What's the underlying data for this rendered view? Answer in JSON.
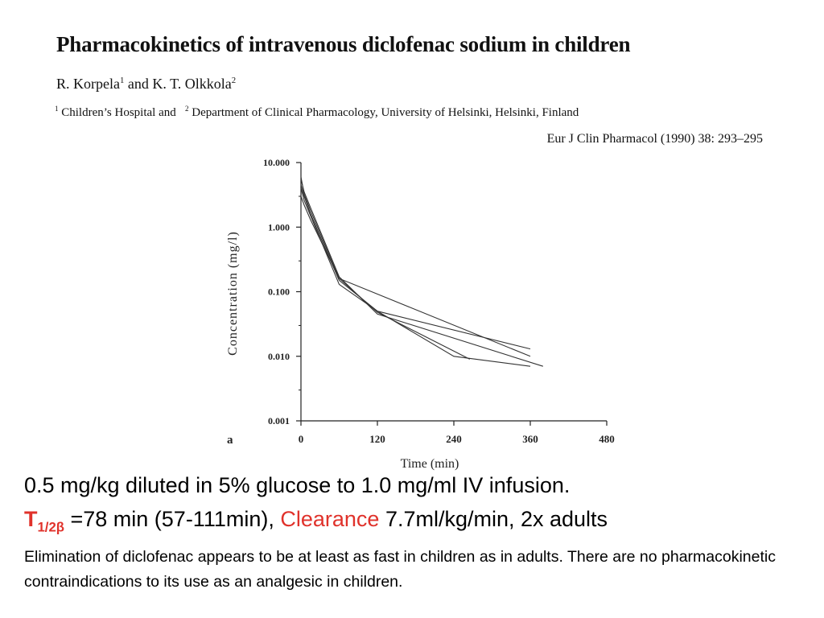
{
  "paper": {
    "title": "Pharmacokinetics of intravenous diclofenac sodium in children",
    "author1": "R. Korpela",
    "author1_sup": "1",
    "author_and": " and ",
    "author2": "K. T. Olkkola",
    "author2_sup": "2",
    "affil1_num": "1",
    "affil1": "Children’s Hospital and",
    "affil2_num": "2",
    "affil2": "Department of Clinical Pharmacology, University of Helsinki, Helsinki, Finland",
    "journal": "Eur J Clin Pharmacol (1990) 38: 293–295"
  },
  "chart_data": {
    "type": "line",
    "panel_label": "a",
    "xlabel": "Time (min)",
    "ylabel": "Concentration (mg/l)",
    "y_scale": "log",
    "xlim": [
      0,
      480
    ],
    "ylim": [
      0.001,
      10
    ],
    "x_ticks": [
      0,
      120,
      240,
      360,
      480
    ],
    "x_tick_labels": [
      "0",
      "120",
      "240",
      "360",
      "480"
    ],
    "y_ticks": [
      0.001,
      0.01,
      0.1,
      1,
      10
    ],
    "y_tick_labels": [
      "0.001",
      "0.010",
      "0.100",
      "1.000",
      "10.000"
    ],
    "grid": false,
    "series": [
      {
        "x": [
          0,
          5,
          15,
          60,
          120,
          360
        ],
        "y": [
          4.5,
          3.0,
          1.6,
          0.15,
          0.05,
          0.013
        ]
      },
      {
        "x": [
          0,
          5,
          15,
          60,
          120,
          380
        ],
        "y": [
          5.5,
          3.5,
          2.0,
          0.17,
          0.045,
          0.007
        ]
      },
      {
        "x": [
          0,
          5,
          15,
          60,
          120,
          265
        ],
        "y": [
          6.0,
          3.2,
          1.8,
          0.16,
          0.048,
          0.009
        ]
      },
      {
        "x": [
          0,
          5,
          15,
          60,
          120,
          240,
          360
        ],
        "y": [
          4.0,
          2.6,
          1.5,
          0.13,
          0.05,
          0.01,
          0.007
        ]
      },
      {
        "x": [
          0,
          5,
          15,
          60,
          360
        ],
        "y": [
          3.0,
          2.2,
          1.3,
          0.16,
          0.01
        ]
      }
    ]
  },
  "summary": {
    "line1": "0.5 mg/kg diluted in 5% glucose to 1.0 mg/ml IV infusion.",
    "t_label": "T",
    "t_sub": "1/2β",
    "t_value": " =78 min (57-111min), ",
    "clearance_label": "Clearance",
    "clearance_value": " 7.7ml/kg/min, 2x adults",
    "body": "Elimination of diclofenac appears to be at least as fast in children as in adults. There are no pharmacokinetic contraindications to its use as an analgesic in children."
  }
}
